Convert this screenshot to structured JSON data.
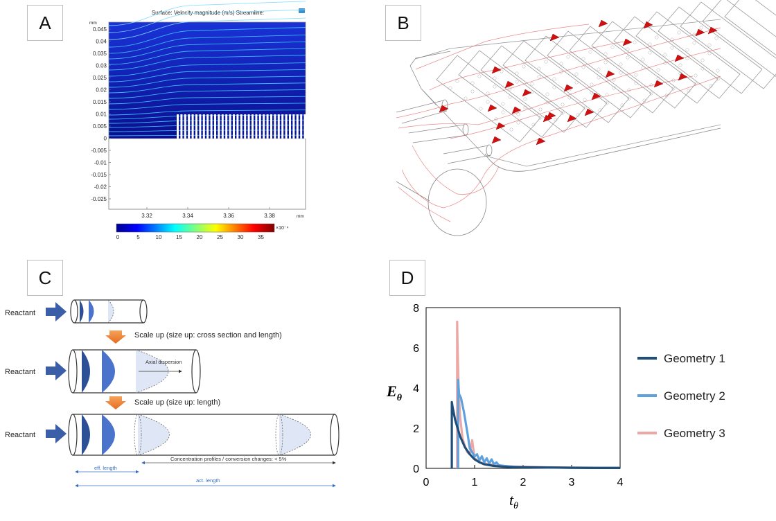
{
  "panels": {
    "A": {
      "label": "A",
      "title": "Surface: Velocity magnitude (m/s)  Streamline:",
      "yunit": "mm",
      "xunit": "mm",
      "yticks": [
        "0.045",
        "0.04",
        "0.035",
        "0.03",
        "0.025",
        "0.02",
        "0.015",
        "0.01",
        "0.005",
        "0",
        "-0.005",
        "-0.01",
        "-0.015",
        "-0.02",
        "-0.025"
      ],
      "xticks": [
        "3.32",
        "3.34",
        "3.36",
        "3.38"
      ],
      "colorbar_ticks": [
        "0",
        "5",
        "10",
        "15",
        "20",
        "25",
        "30",
        "35"
      ],
      "colorbar_exp": "×10⁻⁴"
    },
    "B": {
      "label": "B"
    },
    "C": {
      "label": "C",
      "reactant": "Reactant",
      "scale1": "Scale up (size up: cross section and length)",
      "scale2": "Scale up (size up: length)",
      "axial": "Axial dispersion",
      "conc": "Concentration profiles / conversion changes: < 5%",
      "eff": "eff. length",
      "act": "act. length"
    },
    "D": {
      "label": "D"
    }
  },
  "chart_data": {
    "type": "line",
    "xlabel": "t",
    "xlabel_sub": "θ",
    "ylabel": "E",
    "ylabel_sub": "θ",
    "xlim": [
      0,
      4
    ],
    "ylim": [
      0,
      8
    ],
    "xticks": [
      0,
      1,
      2,
      3,
      4
    ],
    "yticks": [
      0,
      2,
      4,
      6,
      8
    ],
    "legend_position": "right",
    "series": [
      {
        "name": "Geometry 1",
        "color": "#1f4e79",
        "x": [
          0.53,
          0.53,
          0.55,
          0.6,
          0.7,
          0.8,
          0.9,
          1.0,
          1.1,
          1.2,
          1.4,
          1.6,
          1.8,
          2.0,
          2.5,
          3.0,
          3.5,
          4.0
        ],
        "y": [
          0,
          3.3,
          3.0,
          2.4,
          1.6,
          1.05,
          0.7,
          0.45,
          0.3,
          0.2,
          0.12,
          0.08,
          0.06,
          0.05,
          0.04,
          0.03,
          0.02,
          0.02
        ]
      },
      {
        "name": "Geometry 2",
        "color": "#5ea1dc",
        "x": [
          0.66,
          0.66,
          0.68,
          0.72,
          0.78,
          0.85,
          0.9,
          0.95,
          1.0,
          1.05,
          1.1,
          1.15,
          1.2,
          1.25,
          1.3,
          1.35,
          1.4,
          1.45,
          1.5,
          1.6,
          1.7,
          1.8,
          2.0,
          2.3,
          2.6,
          3.0,
          3.5,
          4.0
        ],
        "y": [
          0,
          4.4,
          3.7,
          3.5,
          2.8,
          1.8,
          1.0,
          0.8,
          0.6,
          0.7,
          0.4,
          0.6,
          0.3,
          0.5,
          0.25,
          0.45,
          0.2,
          0.3,
          0.15,
          0.12,
          0.1,
          0.08,
          0.06,
          0.05,
          0.04,
          0.03,
          0.02,
          0.02
        ]
      },
      {
        "name": "Geometry 3",
        "color": "#eba8a4",
        "x": [
          0.64,
          0.64,
          0.65,
          0.67,
          0.7,
          0.75,
          0.8,
          0.85,
          0.9,
          0.95,
          1.0,
          1.05,
          1.1,
          1.2,
          1.3,
          1.5,
          1.7,
          2.0,
          2.5,
          3.0,
          3.5,
          4.0
        ],
        "y": [
          0,
          7.3,
          6.0,
          4.0,
          2.6,
          1.5,
          1.1,
          0.8,
          0.7,
          1.4,
          0.5,
          0.4,
          0.3,
          0.25,
          0.2,
          0.15,
          0.1,
          0.08,
          0.05,
          0.04,
          0.03,
          0.02
        ]
      }
    ]
  }
}
